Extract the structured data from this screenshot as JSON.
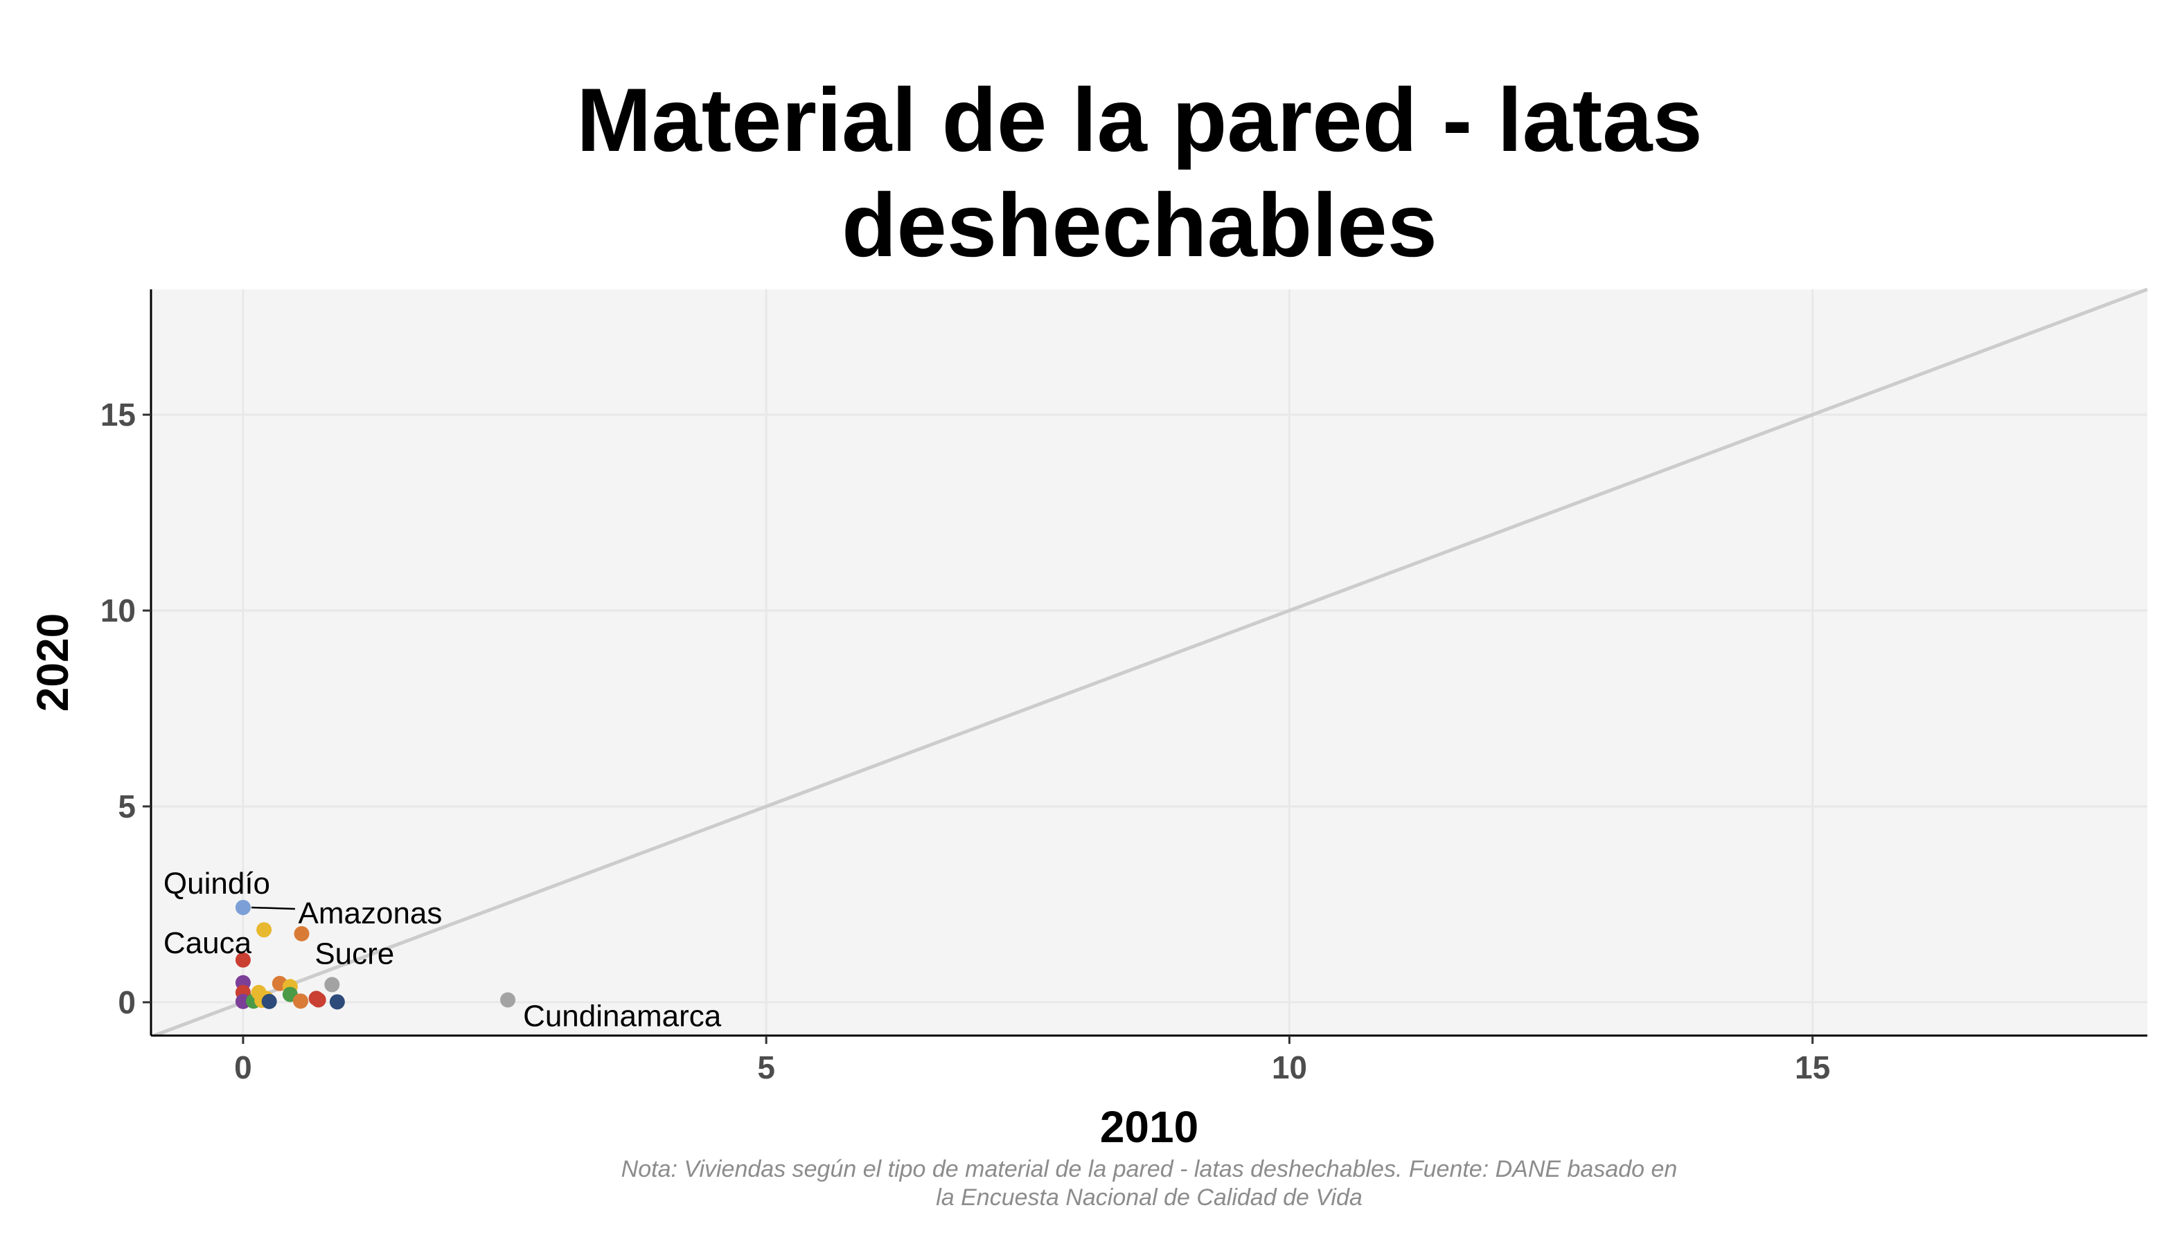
{
  "chart_data": {
    "type": "scatter",
    "title_lines": [
      "Material de la pared - latas",
      "deshechables"
    ],
    "xlabel": "2010",
    "ylabel": "2020",
    "caption_lines": [
      "Nota: Viviendas según el tipo de material de la pared - latas deshechables. Fuente: DANE basado en",
      "la Encuesta Nacional de Calidad de Vida"
    ],
    "xlim": [
      -0.88,
      18.2
    ],
    "ylim": [
      -0.85,
      18.2
    ],
    "x_ticks": [
      0,
      5,
      10,
      15
    ],
    "y_ticks": [
      0,
      5,
      10,
      15
    ],
    "x_tick_labels": [
      "0",
      "5",
      "10",
      "15"
    ],
    "y_tick_labels": [
      "0",
      "5",
      "10",
      "15"
    ],
    "grid": true,
    "reference_line": "y = x",
    "colors": {
      "panel_background": "#f4f4f4",
      "grid": "#e8e8e8",
      "reference_line": "#cccccc",
      "axis": "#000000"
    },
    "points": [
      {
        "x": 0.0,
        "y": 2.42,
        "color": "#7b9fd6",
        "label": "Quindío"
      },
      {
        "x": 0.56,
        "y": 1.75,
        "color": "#d97b37",
        "label": "Amazonas"
      },
      {
        "x": 0.0,
        "y": 1.08,
        "color": "#c93f32",
        "label": "Cauca"
      },
      {
        "x": 0.85,
        "y": 0.45,
        "color": "#a3a3a3",
        "label": "Sucre"
      },
      {
        "x": 2.53,
        "y": 0.06,
        "color": "#a3a3a3",
        "label": "Cundinamarca"
      },
      {
        "x": 0.2,
        "y": 1.85,
        "color": "#e8b82e",
        "label": ""
      },
      {
        "x": 0.0,
        "y": 0.5,
        "color": "#7b3f98",
        "label": ""
      },
      {
        "x": 0.0,
        "y": 0.25,
        "color": "#c93f32",
        "label": ""
      },
      {
        "x": 0.0,
        "y": 0.02,
        "color": "#7b3f98",
        "label": ""
      },
      {
        "x": 0.1,
        "y": 0.03,
        "color": "#4a9a47",
        "label": ""
      },
      {
        "x": 0.15,
        "y": 0.25,
        "color": "#e8b82e",
        "label": ""
      },
      {
        "x": 0.18,
        "y": 0.05,
        "color": "#e8b82e",
        "label": ""
      },
      {
        "x": 0.22,
        "y": 0.1,
        "color": "#e8b82e",
        "label": ""
      },
      {
        "x": 0.25,
        "y": 0.02,
        "color": "#2c4a7a",
        "label": ""
      },
      {
        "x": 0.35,
        "y": 0.48,
        "color": "#d97b37",
        "label": ""
      },
      {
        "x": 0.45,
        "y": 0.4,
        "color": "#e8b82e",
        "label": ""
      },
      {
        "x": 0.45,
        "y": 0.2,
        "color": "#4a9a47",
        "label": ""
      },
      {
        "x": 0.55,
        "y": 0.03,
        "color": "#d97b37",
        "label": ""
      },
      {
        "x": 0.7,
        "y": 0.1,
        "color": "#c93f32",
        "label": ""
      },
      {
        "x": 0.72,
        "y": 0.06,
        "color": "#c93f32",
        "label": ""
      },
      {
        "x": 0.9,
        "y": 0.01,
        "color": "#2c4a7a",
        "label": ""
      }
    ]
  }
}
